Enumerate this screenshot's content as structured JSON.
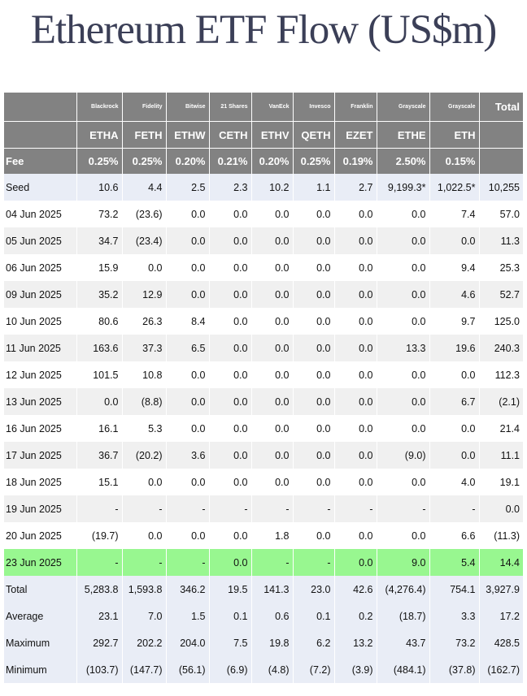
{
  "title": "Ethereum ETF Flow (US$m)",
  "header": {
    "issuers": [
      "Blackrock",
      "Fidelity",
      "Bitwise",
      "21 Shares",
      "VanEck",
      "Invesco",
      "Franklin",
      "Grayscale",
      "Grayscale"
    ],
    "total_label": "Total",
    "tickers": [
      "ETHA",
      "FETH",
      "ETHW",
      "CETH",
      "ETHV",
      "QETH",
      "EZET",
      "ETHE",
      "ETH"
    ],
    "fee_label": "Fee",
    "fees": [
      "0.25%",
      "0.25%",
      "0.20%",
      "0.21%",
      "0.20%",
      "0.25%",
      "0.19%",
      "2.50%",
      "0.15%"
    ]
  },
  "rows": [
    {
      "label": "Seed",
      "values": [
        "10.6",
        "4.4",
        "2.5",
        "2.3",
        "10.2",
        "1.1",
        "2.7",
        "9,199.3*",
        "1,022.5*",
        "10,255"
      ]
    },
    {
      "label": "04 Jun 2025",
      "values": [
        "73.2",
        "(23.6)",
        "0.0",
        "0.0",
        "0.0",
        "0.0",
        "0.0",
        "0.0",
        "7.4",
        "57.0"
      ]
    },
    {
      "label": "05 Jun 2025",
      "values": [
        "34.7",
        "(23.4)",
        "0.0",
        "0.0",
        "0.0",
        "0.0",
        "0.0",
        "0.0",
        "0.0",
        "11.3"
      ]
    },
    {
      "label": "06 Jun 2025",
      "values": [
        "15.9",
        "0.0",
        "0.0",
        "0.0",
        "0.0",
        "0.0",
        "0.0",
        "0.0",
        "9.4",
        "25.3"
      ]
    },
    {
      "label": "09 Jun 2025",
      "values": [
        "35.2",
        "12.9",
        "0.0",
        "0.0",
        "0.0",
        "0.0",
        "0.0",
        "0.0",
        "4.6",
        "52.7"
      ]
    },
    {
      "label": "10 Jun 2025",
      "values": [
        "80.6",
        "26.3",
        "8.4",
        "0.0",
        "0.0",
        "0.0",
        "0.0",
        "0.0",
        "9.7",
        "125.0"
      ]
    },
    {
      "label": "11 Jun 2025",
      "values": [
        "163.6",
        "37.3",
        "6.5",
        "0.0",
        "0.0",
        "0.0",
        "0.0",
        "13.3",
        "19.6",
        "240.3"
      ]
    },
    {
      "label": "12 Jun 2025",
      "values": [
        "101.5",
        "10.8",
        "0.0",
        "0.0",
        "0.0",
        "0.0",
        "0.0",
        "0.0",
        "0.0",
        "112.3"
      ]
    },
    {
      "label": "13 Jun 2025",
      "values": [
        "0.0",
        "(8.8)",
        "0.0",
        "0.0",
        "0.0",
        "0.0",
        "0.0",
        "0.0",
        "6.7",
        "(2.1)"
      ]
    },
    {
      "label": "16 Jun 2025",
      "values": [
        "16.1",
        "5.3",
        "0.0",
        "0.0",
        "0.0",
        "0.0",
        "0.0",
        "0.0",
        "0.0",
        "21.4"
      ]
    },
    {
      "label": "17 Jun 2025",
      "values": [
        "36.7",
        "(20.2)",
        "3.6",
        "0.0",
        "0.0",
        "0.0",
        "0.0",
        "(9.0)",
        "0.0",
        "11.1"
      ]
    },
    {
      "label": "18 Jun 2025",
      "values": [
        "15.1",
        "0.0",
        "0.0",
        "0.0",
        "0.0",
        "0.0",
        "0.0",
        "0.0",
        "4.0",
        "19.1"
      ]
    },
    {
      "label": "19 Jun 2025",
      "values": [
        "-",
        "-",
        "-",
        "-",
        "-",
        "-",
        "-",
        "-",
        "-",
        "0.0"
      ]
    },
    {
      "label": "20 Jun 2025",
      "values": [
        "(19.7)",
        "0.0",
        "0.0",
        "0.0",
        "1.8",
        "0.0",
        "0.0",
        "0.0",
        "6.6",
        "(11.3)"
      ]
    },
    {
      "label": "23 Jun 2025",
      "values": [
        "-",
        "-",
        "-",
        "0.0",
        "-",
        "-",
        "0.0",
        "9.0",
        "5.4",
        "14.4"
      ]
    },
    {
      "label": "Total",
      "values": [
        "5,283.8",
        "1,593.8",
        "346.2",
        "19.5",
        "141.3",
        "23.0",
        "42.6",
        "(4,276.4)",
        "754.1",
        "3,927.9"
      ]
    },
    {
      "label": "Average",
      "values": [
        "23.1",
        "7.0",
        "1.5",
        "0.1",
        "0.6",
        "0.1",
        "0.2",
        "(18.7)",
        "3.3",
        "17.2"
      ]
    },
    {
      "label": "Maximum",
      "values": [
        "292.7",
        "202.2",
        "204.0",
        "7.5",
        "19.8",
        "6.2",
        "13.2",
        "43.7",
        "73.2",
        "428.5"
      ]
    },
    {
      "label": "Minimum",
      "values": [
        "(103.7)",
        "(147.7)",
        "(56.1)",
        "(6.9)",
        "(4.8)",
        "(7.2)",
        "(3.9)",
        "(484.1)",
        "(37.8)",
        "(162.7)"
      ]
    }
  ],
  "colors": {
    "header_bg": "#828282",
    "highlight_row": "#98f790",
    "summary_bg": "#e9edf6",
    "negative_text": "#d40000",
    "title_text": "#3b3f57"
  }
}
